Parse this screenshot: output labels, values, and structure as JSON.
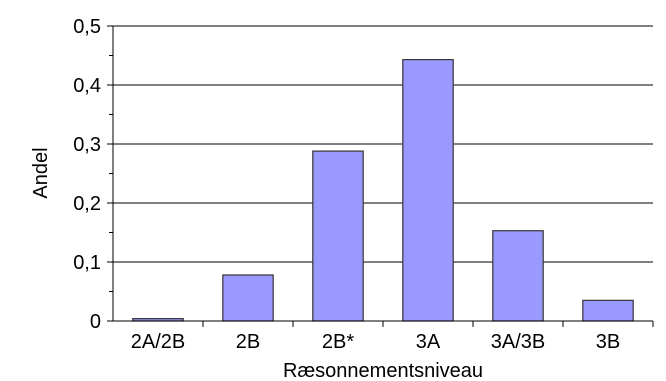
{
  "chart_data": {
    "type": "bar",
    "categories": [
      "2A/2B",
      "2B",
      "2B*",
      "3A",
      "3A/3B",
      "3B"
    ],
    "values": [
      0.004,
      0.078,
      0.288,
      0.443,
      0.153,
      0.035
    ],
    "ylim": [
      0,
      0.5
    ],
    "yticks": [
      "0",
      "0,1",
      "0,2",
      "0,3",
      "0,4",
      "0,5"
    ],
    "xlabel": "Ræsonnementsniveau",
    "ylabel": "Andel",
    "grid": true,
    "bar_color": "#9999ff",
    "bar_stroke": "#333333"
  }
}
